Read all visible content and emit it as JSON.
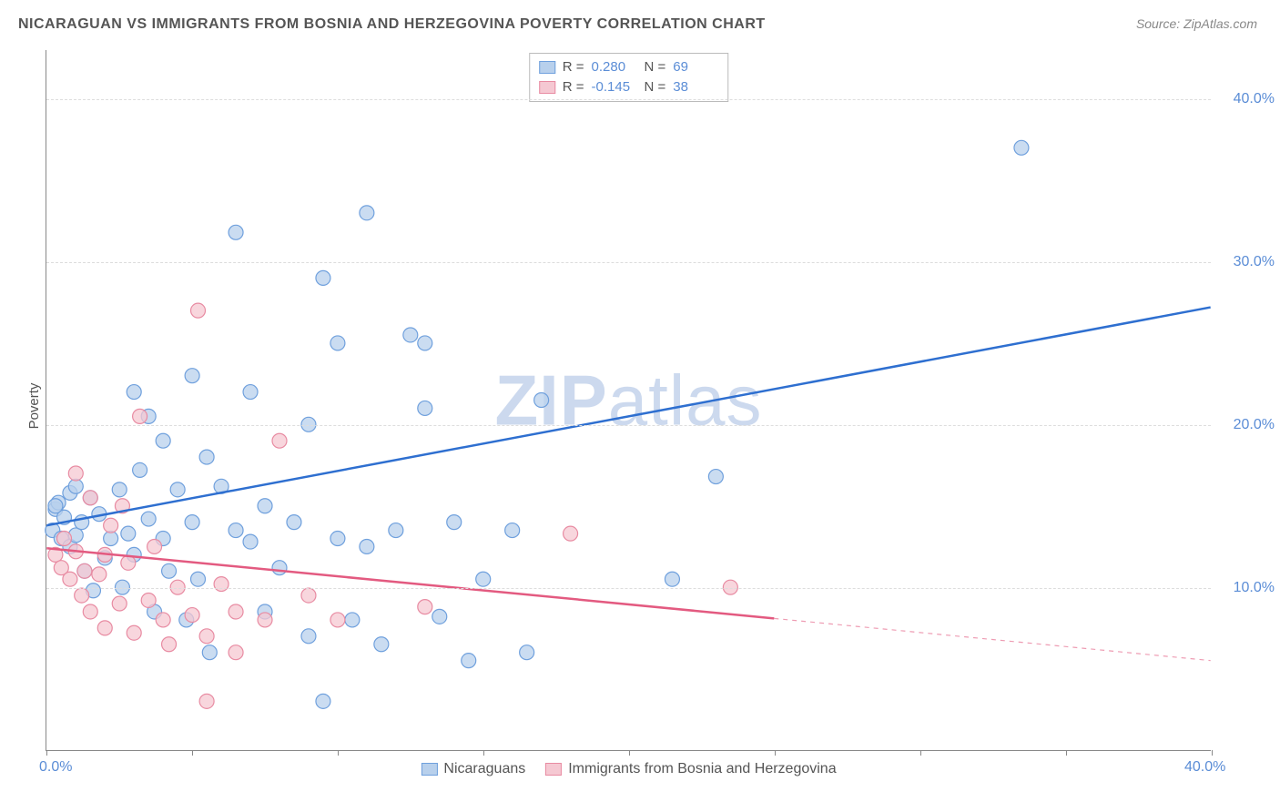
{
  "title": "NICARAGUAN VS IMMIGRANTS FROM BOSNIA AND HERZEGOVINA POVERTY CORRELATION CHART",
  "source": "Source: ZipAtlas.com",
  "watermark": {
    "bold": "ZIP",
    "rest": "atlas"
  },
  "y_axis_title": "Poverty",
  "chart": {
    "type": "scatter",
    "xlim": [
      0,
      40
    ],
    "ylim": [
      0,
      43
    ],
    "y_ticks": [
      10,
      20,
      30,
      40
    ],
    "y_tick_labels": [
      "10.0%",
      "20.0%",
      "30.0%",
      "40.0%"
    ],
    "x_ticks": [
      0,
      5,
      10,
      15,
      20,
      25,
      30,
      35,
      40
    ],
    "x_tick_labels": {
      "0": "0.0%",
      "40": "40.0%"
    },
    "grid_color": "#dddddd",
    "background_color": "#ffffff",
    "axis_color": "#888888",
    "marker_radius": 8,
    "marker_stroke_width": 1.2,
    "line_width": 2.5,
    "series": [
      {
        "name": "Nicaraguans",
        "fill_color": "#b8d0ec",
        "stroke_color": "#6fa0dd",
        "line_color": "#2e6fd0",
        "r": "0.280",
        "n": "69",
        "trend": {
          "x1": 0,
          "y1": 13.8,
          "x2": 40,
          "y2": 27.2
        },
        "points": [
          [
            0.2,
            13.5
          ],
          [
            0.3,
            14.8
          ],
          [
            0.4,
            15.2
          ],
          [
            0.5,
            13.0
          ],
          [
            0.6,
            14.3
          ],
          [
            0.8,
            15.8
          ],
          [
            0.8,
            12.5
          ],
          [
            1.0,
            13.2
          ],
          [
            1.0,
            16.2
          ],
          [
            1.2,
            14.0
          ],
          [
            1.3,
            11.0
          ],
          [
            1.5,
            15.5
          ],
          [
            1.6,
            9.8
          ],
          [
            1.8,
            14.5
          ],
          [
            2.0,
            11.8
          ],
          [
            2.2,
            13.0
          ],
          [
            2.5,
            16.0
          ],
          [
            2.6,
            10.0
          ],
          [
            2.8,
            13.3
          ],
          [
            3.0,
            22.0
          ],
          [
            3.0,
            12.0
          ],
          [
            3.2,
            17.2
          ],
          [
            3.5,
            14.2
          ],
          [
            3.5,
            20.5
          ],
          [
            3.7,
            8.5
          ],
          [
            4.0,
            13.0
          ],
          [
            4.0,
            19.0
          ],
          [
            4.2,
            11.0
          ],
          [
            4.5,
            16.0
          ],
          [
            4.8,
            8.0
          ],
          [
            5.0,
            14.0
          ],
          [
            5.0,
            23.0
          ],
          [
            5.2,
            10.5
          ],
          [
            5.5,
            18.0
          ],
          [
            5.6,
            6.0
          ],
          [
            6.0,
            16.2
          ],
          [
            6.5,
            13.5
          ],
          [
            6.5,
            31.8
          ],
          [
            7.0,
            12.8
          ],
          [
            7.0,
            22.0
          ],
          [
            7.5,
            8.5
          ],
          [
            7.5,
            15.0
          ],
          [
            8.0,
            11.2
          ],
          [
            8.5,
            14.0
          ],
          [
            9.0,
            7.0
          ],
          [
            9.0,
            20.0
          ],
          [
            9.5,
            3.0
          ],
          [
            9.5,
            29.0
          ],
          [
            10.0,
            13.0
          ],
          [
            10.0,
            25.0
          ],
          [
            10.5,
            8.0
          ],
          [
            11.0,
            33.0
          ],
          [
            11.0,
            12.5
          ],
          [
            11.5,
            6.5
          ],
          [
            12.0,
            13.5
          ],
          [
            12.5,
            25.5
          ],
          [
            13.0,
            21.0
          ],
          [
            13.5,
            8.2
          ],
          [
            13.0,
            25.0
          ],
          [
            14.0,
            14.0
          ],
          [
            14.5,
            5.5
          ],
          [
            15.0,
            10.5
          ],
          [
            16.0,
            13.5
          ],
          [
            16.5,
            6.0
          ],
          [
            17.0,
            21.5
          ],
          [
            21.5,
            10.5
          ],
          [
            23.0,
            16.8
          ],
          [
            33.5,
            37.0
          ],
          [
            0.3,
            15.0
          ]
        ]
      },
      {
        "name": "Immigrants from Bosnia and Herzegovina",
        "fill_color": "#f5c8d2",
        "stroke_color": "#e88ba2",
        "line_color": "#e35a80",
        "r": "-0.145",
        "n": "38",
        "trend": {
          "x1": 0,
          "y1": 12.4,
          "x2": 40,
          "y2": 5.5
        },
        "trend_solid_until_x": 25,
        "points": [
          [
            0.3,
            12.0
          ],
          [
            0.5,
            11.2
          ],
          [
            0.6,
            13.0
          ],
          [
            0.8,
            10.5
          ],
          [
            1.0,
            12.2
          ],
          [
            1.0,
            17.0
          ],
          [
            1.2,
            9.5
          ],
          [
            1.3,
            11.0
          ],
          [
            1.5,
            15.5
          ],
          [
            1.5,
            8.5
          ],
          [
            1.8,
            10.8
          ],
          [
            2.0,
            12.0
          ],
          [
            2.0,
            7.5
          ],
          [
            2.2,
            13.8
          ],
          [
            2.5,
            9.0
          ],
          [
            2.6,
            15.0
          ],
          [
            2.8,
            11.5
          ],
          [
            3.0,
            7.2
          ],
          [
            3.2,
            20.5
          ],
          [
            3.5,
            9.2
          ],
          [
            3.7,
            12.5
          ],
          [
            4.0,
            8.0
          ],
          [
            4.2,
            6.5
          ],
          [
            4.5,
            10.0
          ],
          [
            5.0,
            8.3
          ],
          [
            5.2,
            27.0
          ],
          [
            5.5,
            7.0
          ],
          [
            5.5,
            3.0
          ],
          [
            6.0,
            10.2
          ],
          [
            6.5,
            8.5
          ],
          [
            6.5,
            6.0
          ],
          [
            7.5,
            8.0
          ],
          [
            8.0,
            19.0
          ],
          [
            9.0,
            9.5
          ],
          [
            10.0,
            8.0
          ],
          [
            13.0,
            8.8
          ],
          [
            18.0,
            13.3
          ],
          [
            23.5,
            10.0
          ]
        ]
      }
    ]
  },
  "legend_labels": {
    "r_label": "R =",
    "n_label": "N ="
  }
}
